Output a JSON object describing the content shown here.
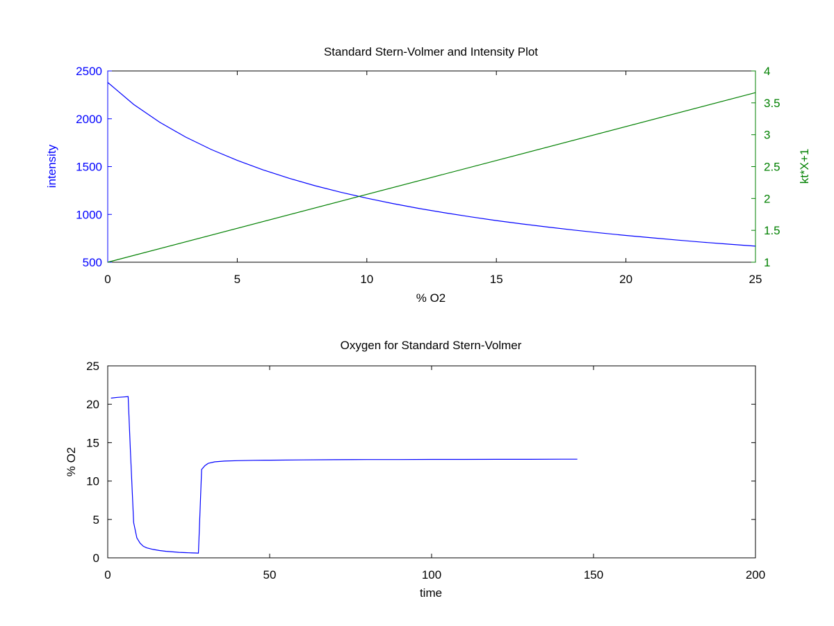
{
  "colors": {
    "intensity": "#0000ff",
    "svl": "#008000",
    "oxygen": "#0000ff",
    "axis": "#000000"
  },
  "chart_data": [
    {
      "type": "line",
      "title": "Standard Stern-Volmer and Intensity Plot",
      "xlabel": "% O2",
      "xlim": [
        0,
        25
      ],
      "xticks": [
        "0",
        "5",
        "10",
        "15",
        "20",
        "25"
      ],
      "y_left": {
        "label": "intensity",
        "lim": [
          500,
          2500
        ],
        "ticks": [
          "500",
          "1000",
          "1500",
          "2000",
          "2500"
        ]
      },
      "y_right": {
        "label": "kt*X+1",
        "lim": [
          1,
          4
        ],
        "ticks": [
          "1",
          "1.5",
          "2",
          "2.5",
          "3",
          "3.5",
          "4"
        ]
      },
      "series": [
        {
          "axis": "left",
          "x": [
            0,
            1,
            2,
            3,
            4,
            5,
            6,
            7,
            8,
            9,
            10,
            11,
            12,
            13,
            14,
            15,
            16,
            17,
            18,
            19,
            20,
            21,
            22,
            23,
            24,
            25
          ],
          "values": [
            2380,
            2150,
            1965,
            1810,
            1678,
            1565,
            1465,
            1378,
            1300,
            1232,
            1170,
            1114,
            1063,
            1017,
            975,
            936,
            900,
            867,
            836,
            807,
            780,
            755,
            731,
            709,
            688,
            668
          ]
        },
        {
          "axis": "right",
          "x": [
            0,
            25
          ],
          "values": [
            1.0,
            3.66
          ]
        }
      ]
    },
    {
      "type": "line",
      "title": "Oxygen for Standard Stern-Volmer",
      "xlabel": "time",
      "ylabel": "% O2",
      "xlim": [
        0,
        200
      ],
      "ylim": [
        0,
        25
      ],
      "xticks": [
        "0",
        "50",
        "100",
        "150",
        "200"
      ],
      "yticks": [
        "0",
        "5",
        "10",
        "15",
        "20",
        "25"
      ],
      "series": [
        {
          "x": [
            1,
            3,
            5,
            6.3,
            7,
            8,
            9,
            10,
            11,
            12,
            14,
            16,
            18,
            20,
            22,
            24,
            25,
            26,
            27,
            28,
            28.5,
            29,
            30,
            31,
            33,
            36,
            40,
            45,
            50,
            60,
            70,
            80,
            90,
            100,
            110,
            120,
            130,
            140,
            145
          ],
          "values": [
            20.8,
            20.9,
            20.95,
            21.0,
            14.0,
            4.6,
            2.6,
            1.9,
            1.5,
            1.3,
            1.1,
            0.95,
            0.85,
            0.78,
            0.72,
            0.68,
            0.66,
            0.64,
            0.63,
            0.62,
            6.0,
            11.5,
            12.0,
            12.3,
            12.5,
            12.6,
            12.65,
            12.7,
            12.72,
            12.75,
            12.78,
            12.8,
            12.8,
            12.82,
            12.82,
            12.83,
            12.83,
            12.84,
            12.84
          ]
        }
      ]
    }
  ]
}
